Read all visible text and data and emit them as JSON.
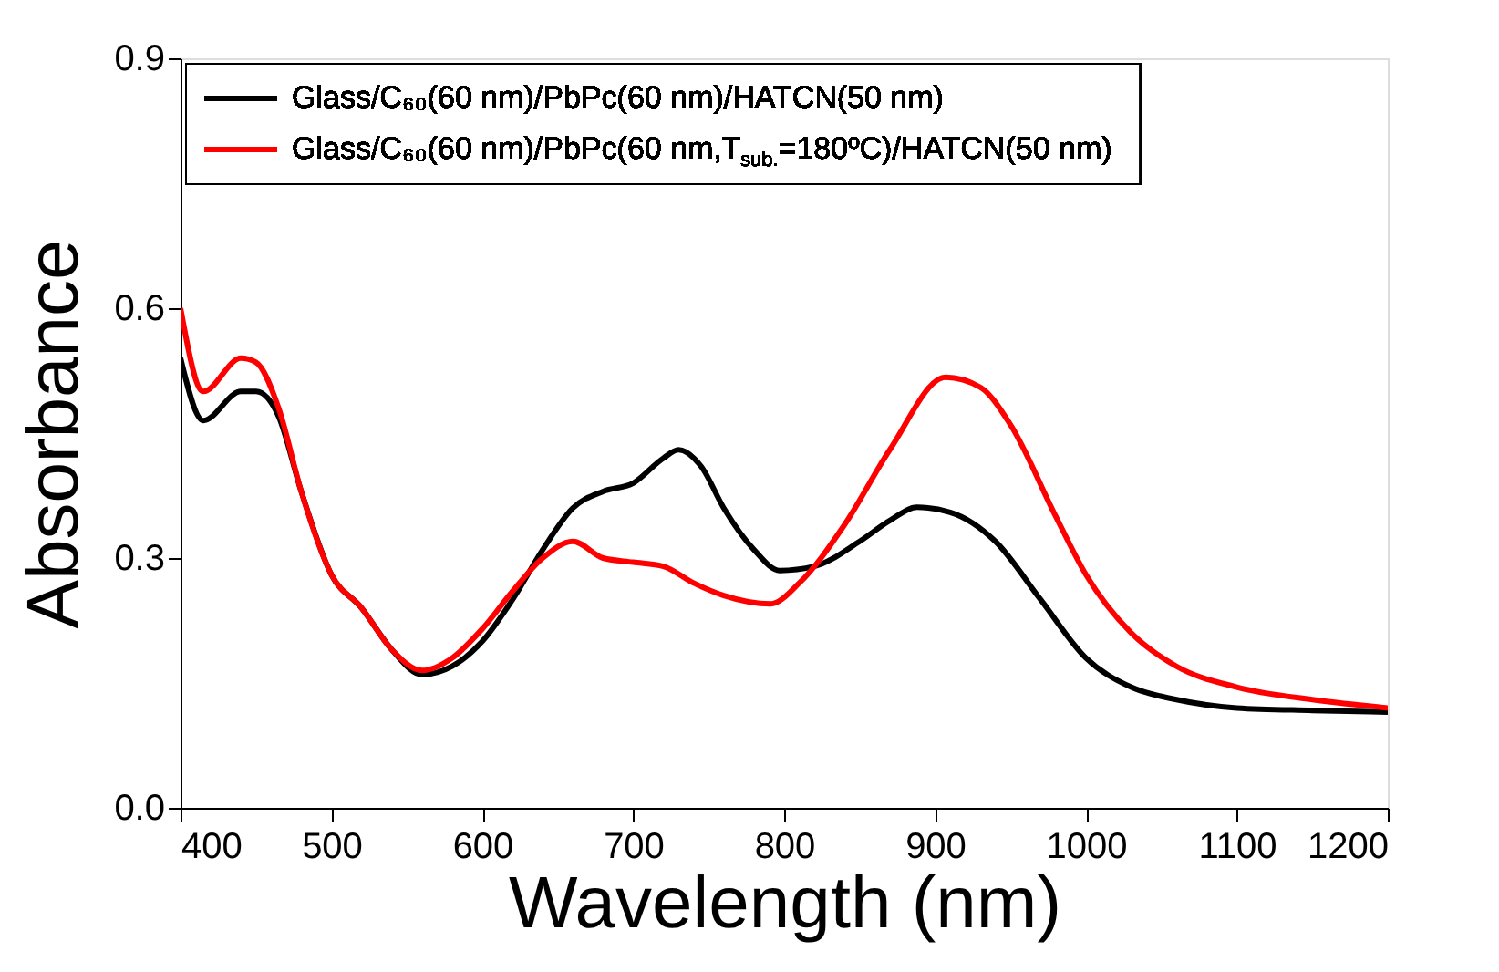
{
  "chart_data": {
    "type": "line",
    "xlabel": "Wavelength (nm)",
    "ylabel": "Absorbance",
    "xlim": [
      400,
      1200
    ],
    "xticks": [
      400,
      500,
      600,
      700,
      800,
      900,
      {
        "value": 1000,
        "label": "1000"
      },
      {
        "value": 1100,
        "label": "1100"
      },
      {
        "value": 1200,
        "label": "1200"
      }
    ],
    "ylim": [
      0,
      0.9
    ],
    "yticks": [
      {
        "value": 0,
        "label": "0.0"
      },
      {
        "value": 0.3,
        "label": "0.3"
      },
      {
        "value": 0.6,
        "label": "0.6"
      },
      {
        "value": 0.9,
        "label": "0.9"
      }
    ],
    "grid": false,
    "legend": "top left",
    "marker": "none",
    "line_style": "solid",
    "series": [
      {
        "name": "Glass/C₆₀(60 nm)/PbPc(60 nm)/HATCN(50 nm)",
        "color": "#000000",
        "x": [
          400,
          415,
          440,
          450,
          465,
          480,
          500,
          520,
          540,
          560,
          580,
          600,
          620,
          640,
          660,
          680,
          700,
          720,
          730,
          745,
          760,
          780,
          797,
          820,
          850,
          870,
          888,
          910,
          940,
          970,
          1000,
          1030,
          1060,
          1100,
          1150,
          1200
        ],
        "values": [
          0.54,
          0.465,
          0.5,
          0.5,
          0.47,
          0.38,
          0.28,
          0.24,
          0.19,
          0.16,
          0.17,
          0.2,
          0.25,
          0.31,
          0.36,
          0.38,
          0.39,
          0.42,
          0.43,
          0.41,
          0.36,
          0.31,
          0.285,
          0.29,
          0.32,
          0.345,
          0.361,
          0.355,
          0.32,
          0.25,
          0.18,
          0.145,
          0.13,
          0.12,
          0.117,
          0.115
        ]
      },
      {
        "name": "Glass/C₆₀(60 nm)/PbPc(60 nm,T$_{sub.}$=180ºC)/HATCN(50 nm)",
        "color": "#ff0000",
        "x": [
          400,
          415,
          440,
          450,
          465,
          480,
          500,
          520,
          540,
          560,
          580,
          600,
          620,
          640,
          660,
          680,
          700,
          720,
          740,
          760,
          791,
          810,
          840,
          870,
          907,
          930,
          950,
          980,
          1000,
          1030,
          1060,
          1100,
          1150,
          1200
        ],
        "values": [
          0.6,
          0.5,
          0.54,
          0.535,
          0.48,
          0.38,
          0.28,
          0.24,
          0.19,
          0.165,
          0.18,
          0.215,
          0.26,
          0.3,
          0.32,
          0.3,
          0.295,
          0.29,
          0.27,
          0.255,
          0.245,
          0.27,
          0.34,
          0.43,
          0.517,
          0.505,
          0.46,
          0.35,
          0.28,
          0.21,
          0.17,
          0.145,
          0.13,
          0.12
        ]
      }
    ]
  }
}
